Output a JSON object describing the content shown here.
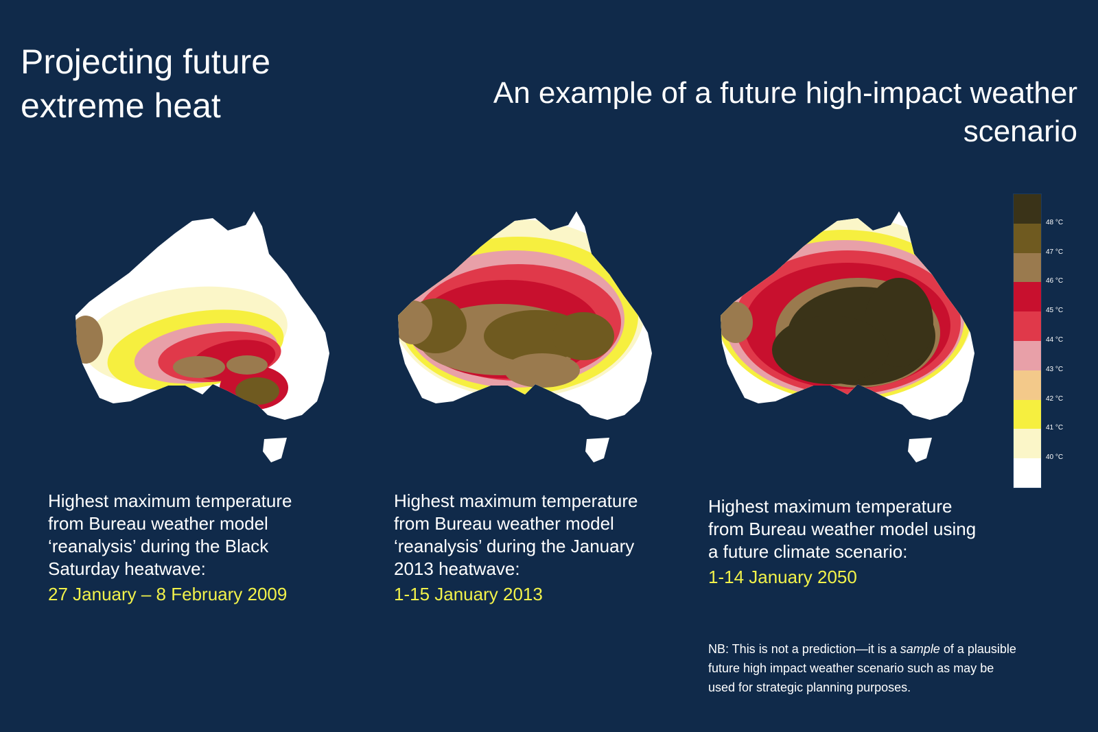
{
  "title_left": "Projecting future extreme heat",
  "title_right": "An example of a future high-impact weather scenario",
  "panels": [
    {
      "description": "Highest maximum temperature from Bureau weather model ‘reanalysis’ during the Black Saturday heatwave:",
      "date": "27 January – 8 February 2009",
      "intensity": 1
    },
    {
      "description": "Highest maximum temperature from Bureau weather model ‘reanalysis’ during the January 2013 heatwave:",
      "date": "1-15 January 2013",
      "intensity": 2
    },
    {
      "description": "Highest maximum temperature from Bureau weather model using a future climate scenario:",
      "date": "1-14 January 2050",
      "intensity": 3
    }
  ],
  "legend": {
    "colors": [
      "#3a3318",
      "#6f5a20",
      "#9a7a4e",
      "#c8102e",
      "#e0394a",
      "#e8a0a8",
      "#f3c98a",
      "#f6ef3f",
      "#fbf6c8",
      "#ffffff"
    ],
    "labels": [
      "48 °C",
      "47 °C",
      "46 °C",
      "45 °C",
      "44 °C",
      "43 °C",
      "42 °C",
      "41 °C",
      "40 °C"
    ]
  },
  "nb": {
    "prefix": "NB: This is not a prediction—it is a ",
    "emphasis": "sample",
    "suffix": " of a plausible future high impact weather scenario such as may be used for strategic planning purposes."
  }
}
